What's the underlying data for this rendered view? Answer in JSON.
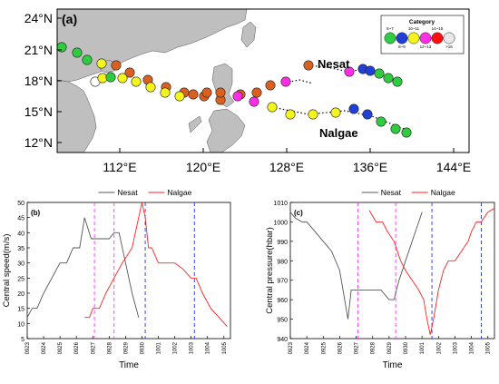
{
  "map": {
    "panel_label": "(a)",
    "lat_ticks": [
      "24°N",
      "21°N",
      "18°N",
      "15°N",
      "12°N"
    ],
    "lon_ticks": [
      "112°E",
      "120°E",
      "128°E",
      "136°E",
      "144°E"
    ],
    "legend": {
      "title": "Category",
      "labels_top": [
        "6~7",
        "10~11",
        "14~15"
      ],
      "labels_bottom": [
        "8~9",
        "12~13",
        ">16"
      ],
      "colors": [
        "#2ecc40",
        "#1f3fd6",
        "#f5f51e",
        "#ff2ee6",
        "#ff1010",
        "#e8e8e8"
      ]
    },
    "label_nesat": "Nesat",
    "label_nalgae": "Nalgae",
    "colors": {
      "land": "#bfbfbf",
      "ocean": "#ffffff",
      "orange": "#d9601f",
      "yellow": "#f5f51e",
      "green": "#2ecc40",
      "blue": "#1f3fd6",
      "magenta": "#ff2ee6",
      "white": "#ffffff"
    }
  },
  "chart_data": [
    {
      "type": "line",
      "panel_label": "(b)",
      "xlabel": "Time",
      "ylabel": "Central speed(m/s)",
      "x_ticks": [
        "0923",
        "0924",
        "0925",
        "0926",
        "0927",
        "0928",
        "0929",
        "0930",
        "1001",
        "1002",
        "1003",
        "1004",
        "1005"
      ],
      "y_ticks": [
        "5",
        "10",
        "15",
        "20",
        "25",
        "30",
        "35",
        "40",
        "45",
        "50"
      ],
      "ylim": [
        5,
        50
      ],
      "xlim": [
        0,
        12.4
      ],
      "legend": {
        "position": "top"
      },
      "vlines": [
        {
          "x": 4.1,
          "color": "#ff33ff"
        },
        {
          "x": 5.3,
          "color": "#ff33ff"
        },
        {
          "x": 7.2,
          "color": "#2233ff"
        },
        {
          "x": 10.2,
          "color": "#2233ff"
        }
      ],
      "series": [
        {
          "name": "Nesat",
          "color": "#555555",
          "points": [
            [
              0,
              12
            ],
            [
              0.3,
              15
            ],
            [
              0.6,
              15
            ],
            [
              1.0,
              20
            ],
            [
              1.5,
              25
            ],
            [
              2.0,
              30
            ],
            [
              2.4,
              30
            ],
            [
              2.8,
              35
            ],
            [
              3.2,
              35
            ],
            [
              3.5,
              45
            ],
            [
              3.9,
              38
            ],
            [
              4.5,
              38
            ],
            [
              5.0,
              38
            ],
            [
              5.3,
              40
            ],
            [
              5.6,
              40
            ],
            [
              6.0,
              30
            ],
            [
              6.4,
              20
            ],
            [
              6.8,
              12
            ]
          ]
        },
        {
          "name": "Nalgae",
          "color": "#ff2222",
          "points": [
            [
              3.5,
              12
            ],
            [
              3.8,
              12
            ],
            [
              4.0,
              15
            ],
            [
              4.4,
              15
            ],
            [
              4.8,
              20
            ],
            [
              5.3,
              25
            ],
            [
              5.8,
              30
            ],
            [
              6.4,
              35
            ],
            [
              6.8,
              45
            ],
            [
              7.0,
              50
            ],
            [
              7.2,
              45
            ],
            [
              7.4,
              35
            ],
            [
              7.6,
              35
            ],
            [
              8.0,
              30
            ],
            [
              8.5,
              30
            ],
            [
              9.0,
              30
            ],
            [
              9.5,
              28
            ],
            [
              10.0,
              25
            ],
            [
              10.3,
              25
            ],
            [
              10.7,
              20
            ],
            [
              11.2,
              15
            ],
            [
              11.7,
              12
            ],
            [
              12.2,
              9
            ]
          ]
        }
      ]
    },
    {
      "type": "line",
      "panel_label": "(c)",
      "xlabel": "Time",
      "ylabel": "Central pressure(hbar)",
      "x_ticks": [
        "0923",
        "0924",
        "0925",
        "0926",
        "0927",
        "0928",
        "0929",
        "0930",
        "1001",
        "1002",
        "1003",
        "1004",
        "1005"
      ],
      "y_ticks": [
        "940",
        "950",
        "960",
        "970",
        "980",
        "990",
        "1000",
        "1010"
      ],
      "ylim": [
        940,
        1010
      ],
      "xlim": [
        0,
        12.4
      ],
      "legend": {
        "position": "top"
      },
      "vlines": [
        {
          "x": 4.1,
          "color": "#ff33ff"
        },
        {
          "x": 6.4,
          "color": "#ff33ff"
        },
        {
          "x": 8.6,
          "color": "#2233ff"
        },
        {
          "x": 11.6,
          "color": "#2233ff"
        }
      ],
      "series": [
        {
          "name": "Nesat",
          "color": "#555555",
          "points": [
            [
              0,
              1005
            ],
            [
              0.3,
              1002
            ],
            [
              0.7,
              1000
            ],
            [
              1.0,
              1000
            ],
            [
              1.5,
              995
            ],
            [
              2.0,
              990
            ],
            [
              2.5,
              985
            ],
            [
              3.0,
              975
            ],
            [
              3.3,
              960
            ],
            [
              3.5,
              950
            ],
            [
              3.7,
              965
            ],
            [
              4.2,
              965
            ],
            [
              5.0,
              965
            ],
            [
              5.5,
              965
            ],
            [
              6.0,
              960
            ],
            [
              6.3,
              960
            ],
            [
              6.6,
              970
            ],
            [
              7.0,
              980
            ],
            [
              7.6,
              995
            ],
            [
              8.0,
              1005
            ]
          ]
        },
        {
          "name": "Nalgae",
          "color": "#ff2222",
          "points": [
            [
              4.8,
              1006
            ],
            [
              5.0,
              1003
            ],
            [
              5.2,
              1000
            ],
            [
              5.6,
              1000
            ],
            [
              5.9,
              995
            ],
            [
              6.3,
              990
            ],
            [
              6.7,
              980
            ],
            [
              7.0,
              975
            ],
            [
              7.4,
              970
            ],
            [
              7.8,
              965
            ],
            [
              8.1,
              960
            ],
            [
              8.3,
              950
            ],
            [
              8.5,
              942
            ],
            [
              8.7,
              950
            ],
            [
              9.0,
              965
            ],
            [
              9.3,
              975
            ],
            [
              9.6,
              980
            ],
            [
              10.0,
              980
            ],
            [
              10.4,
              985
            ],
            [
              10.8,
              990
            ],
            [
              11.0,
              995
            ],
            [
              11.3,
              1000
            ],
            [
              11.6,
              1000
            ],
            [
              12.0,
              1005
            ],
            [
              12.4,
              1007
            ]
          ]
        }
      ]
    }
  ]
}
